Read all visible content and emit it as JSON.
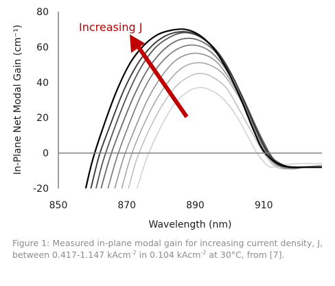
{
  "chart_data": {
    "type": "line",
    "xlabel": "Wavelength (nm)",
    "ylabel": "In-Plane Net Modal Gain (cm⁻¹)",
    "xlim": [
      850,
      927
    ],
    "ylim": [
      -20,
      80
    ],
    "xticks": [
      850,
      870,
      890,
      910
    ],
    "yticks": [
      -20,
      0,
      20,
      40,
      60,
      80
    ],
    "grid": false,
    "reference_line": 0,
    "annotation": {
      "text": "Increasing J",
      "color": "#c00000"
    },
    "series": [
      {
        "color": "#d0d0d0",
        "width": 1.5,
        "x": [
          873,
          876,
          880,
          884,
          888,
          891,
          894,
          898,
          902,
          906,
          908,
          910,
          912,
          915,
          920,
          927
        ],
        "y": [
          -20,
          -2,
          15,
          28,
          35,
          37,
          36,
          31,
          21,
          7,
          0,
          -5,
          -8,
          -7,
          -6,
          -6
        ]
      },
      {
        "color": "#bdbdbd",
        "width": 1.5,
        "x": [
          870.5,
          873,
          877,
          881,
          885,
          889,
          892,
          895,
          899,
          903,
          907,
          910,
          913,
          916,
          920,
          927
        ],
        "y": [
          -20,
          -3,
          15,
          29,
          39,
          44,
          45,
          43,
          37,
          24,
          10,
          0,
          -7,
          -9,
          -8,
          -7
        ]
      },
      {
        "color": "#a8a8a8",
        "width": 1.6,
        "x": [
          868.5,
          871,
          874,
          878,
          882,
          886,
          890,
          894,
          898,
          902,
          906,
          909,
          912,
          915,
          918,
          922,
          927
        ],
        "y": [
          -20,
          -3,
          12,
          28,
          40,
          48,
          51,
          50,
          45,
          34,
          20,
          7,
          -4,
          -8,
          -9,
          -8,
          -7
        ]
      },
      {
        "color": "#939393",
        "width": 1.6,
        "x": [
          866.5,
          869,
          872,
          876,
          880,
          884,
          888,
          892,
          896,
          900,
          904,
          908,
          911,
          914,
          918,
          922,
          927
        ],
        "y": [
          -20,
          -3,
          12,
          30,
          43,
          52,
          56,
          56,
          52,
          42,
          28,
          10,
          -1,
          -7,
          -9,
          -8,
          -7
        ]
      },
      {
        "color": "#7e7e7e",
        "width": 1.7,
        "x": [
          864.5,
          867,
          870,
          874,
          878,
          882,
          886,
          890,
          894,
          898,
          902,
          906,
          910,
          913,
          916,
          920,
          927
        ],
        "y": [
          -20,
          -3,
          13,
          32,
          46,
          55,
          60,
          61,
          58,
          50,
          37,
          20,
          4,
          -5,
          -8,
          -8,
          -8
        ]
      },
      {
        "color": "#6a6a6a",
        "width": 1.8,
        "x": [
          862.5,
          865,
          868,
          872,
          876,
          880,
          884,
          888,
          892,
          896,
          900,
          904,
          908,
          912,
          915,
          919,
          923,
          927
        ],
        "y": [
          -20,
          -3,
          13,
          32,
          47,
          57,
          63,
          65,
          63,
          57,
          46,
          31,
          14,
          -1,
          -7,
          -8,
          -8,
          -8
        ]
      },
      {
        "color": "#545454",
        "width": 1.8,
        "x": [
          861,
          863,
          866,
          870,
          874,
          878,
          882,
          886,
          890,
          894,
          898,
          902,
          906,
          910,
          913,
          917,
          921,
          927
        ],
        "y": [
          -20,
          -5,
          12,
          32,
          48,
          59,
          65,
          68,
          67,
          62,
          53,
          39,
          22,
          5,
          -4,
          -8,
          -8,
          -8
        ]
      },
      {
        "color": "#3a3a3a",
        "width": 1.9,
        "x": [
          859.5,
          862,
          865,
          869,
          873,
          877,
          881,
          885,
          889,
          893,
          897,
          901,
          905,
          909,
          912,
          916,
          920,
          927
        ],
        "y": [
          -20,
          -1,
          15,
          35,
          50,
          60,
          66,
          68.5,
          68,
          64,
          56,
          43,
          26,
          8,
          -2,
          -7,
          -8,
          -8
        ]
      },
      {
        "color": "#000000",
        "width": 2.2,
        "x": [
          858,
          860,
          863,
          867,
          871,
          875,
          879,
          883,
          887,
          891,
          895,
          899,
          903,
          907,
          910,
          914,
          918,
          922,
          927
        ],
        "y": [
          -20,
          -4,
          14,
          35,
          51,
          61,
          67,
          69.5,
          70,
          67,
          60,
          48,
          32,
          13,
          1,
          -6,
          -8,
          -8,
          -8
        ]
      }
    ]
  },
  "caption": {
    "prefix": "Figure 1: Measured in-plane modal gain for increasing current density, J, between 0.417-1.147 kAcm",
    "sup1": "-2",
    "middle": " in 0.104 kAcm",
    "sup2": "-2",
    "suffix": " at 30°C, from [7]."
  }
}
